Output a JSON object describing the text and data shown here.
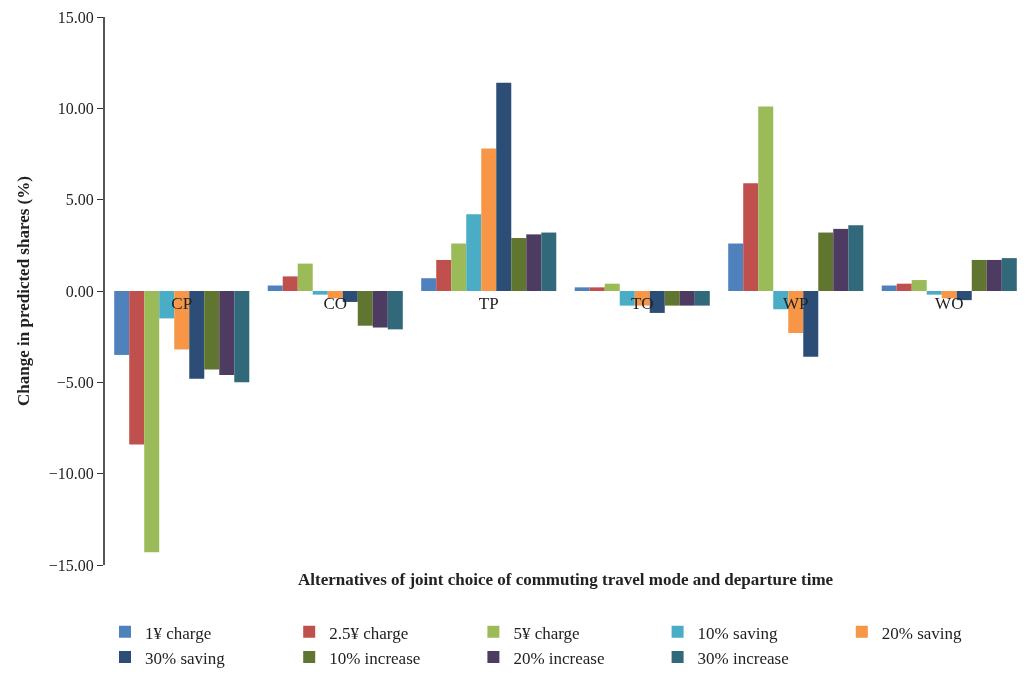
{
  "chart_data": {
    "type": "bar",
    "xlabel": "Alternatives of joint choice of commuting travel mode and departure time",
    "ylabel": "Change in predicted shares (%)",
    "categories": [
      "CP",
      "CO",
      "TP",
      "TO",
      "WP",
      "WO"
    ],
    "series": [
      {
        "name": "1¥ charge",
        "color": "#4f81bd",
        "values": [
          -3.5,
          0.3,
          0.7,
          0.2,
          2.6,
          0.3
        ]
      },
      {
        "name": "2.5¥ charge",
        "color": "#c0504d",
        "values": [
          -8.4,
          0.8,
          1.7,
          0.2,
          5.9,
          0.4
        ]
      },
      {
        "name": "5¥ charge",
        "color": "#9bbb59",
        "values": [
          -14.3,
          1.5,
          2.6,
          0.4,
          10.1,
          0.6
        ]
      },
      {
        "name": "10% saving",
        "color": "#4bacc6",
        "values": [
          -1.5,
          -0.2,
          4.2,
          -0.8,
          -1.0,
          -0.2
        ]
      },
      {
        "name": "20% saving",
        "color": "#f79646",
        "values": [
          -3.2,
          -0.4,
          7.8,
          -0.8,
          -2.3,
          -0.4
        ]
      },
      {
        "name": "30% saving",
        "color": "#2c4d75",
        "values": [
          -4.8,
          -0.6,
          11.4,
          -1.2,
          -3.6,
          -0.5
        ]
      },
      {
        "name": "10% increase",
        "color": "#5f7530",
        "values": [
          -4.3,
          -1.9,
          2.9,
          -0.8,
          3.2,
          1.7
        ]
      },
      {
        "name": "20% increase",
        "color": "#4d3b62",
        "values": [
          -4.6,
          -2.0,
          3.1,
          -0.8,
          3.4,
          1.7
        ]
      },
      {
        "name": "30% increase",
        "color": "#31687a",
        "values": [
          -5.0,
          -2.1,
          3.2,
          -0.8,
          3.6,
          1.8
        ]
      }
    ],
    "ylim": [
      -15,
      15
    ],
    "yticks": [
      {
        "value": -15,
        "label": "−15.00"
      },
      {
        "value": -10,
        "label": "−10.00"
      },
      {
        "value": -5,
        "label": "−5.00"
      },
      {
        "value": 0,
        "label": "0.00"
      },
      {
        "value": 5,
        "label": "5.00"
      },
      {
        "value": 10,
        "label": "10.00"
      },
      {
        "value": 15,
        "label": "15.00"
      }
    ],
    "legend": "bottom"
  }
}
